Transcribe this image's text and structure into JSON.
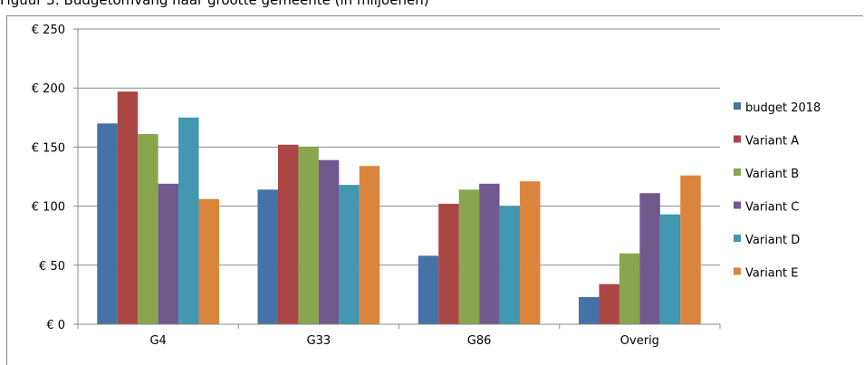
{
  "chart_data": {
    "type": "bar",
    "title": "Figuur 3: Budgetomvang naar grootte gemeente (in miljoenen)",
    "categories": [
      "G4",
      "G33",
      "G86",
      "Overig"
    ],
    "ylim": [
      0,
      250
    ],
    "yticks": [
      0,
      50,
      100,
      150,
      200,
      250
    ],
    "ytick_labels": [
      "€ 0",
      "€ 50",
      "€ 100",
      "€ 150",
      "€ 200",
      "€ 250"
    ],
    "grid": true,
    "legend_position": "right",
    "series": [
      {
        "name": "budget 2018",
        "color": "#4572A7",
        "values": [
          170,
          114,
          58,
          23
        ]
      },
      {
        "name": "Variant A",
        "color": "#AA4643",
        "values": [
          197,
          152,
          102,
          34
        ]
      },
      {
        "name": "Variant B",
        "color": "#89A54E",
        "values": [
          161,
          150,
          114,
          60
        ]
      },
      {
        "name": "Variant C",
        "color": "#71588F",
        "values": [
          119,
          139,
          119,
          111
        ]
      },
      {
        "name": "Variant D",
        "color": "#4198AF",
        "values": [
          175,
          118,
          100,
          93
        ]
      },
      {
        "name": "Variant E",
        "color": "#DB843D",
        "values": [
          106,
          134,
          121,
          126
        ]
      }
    ]
  }
}
